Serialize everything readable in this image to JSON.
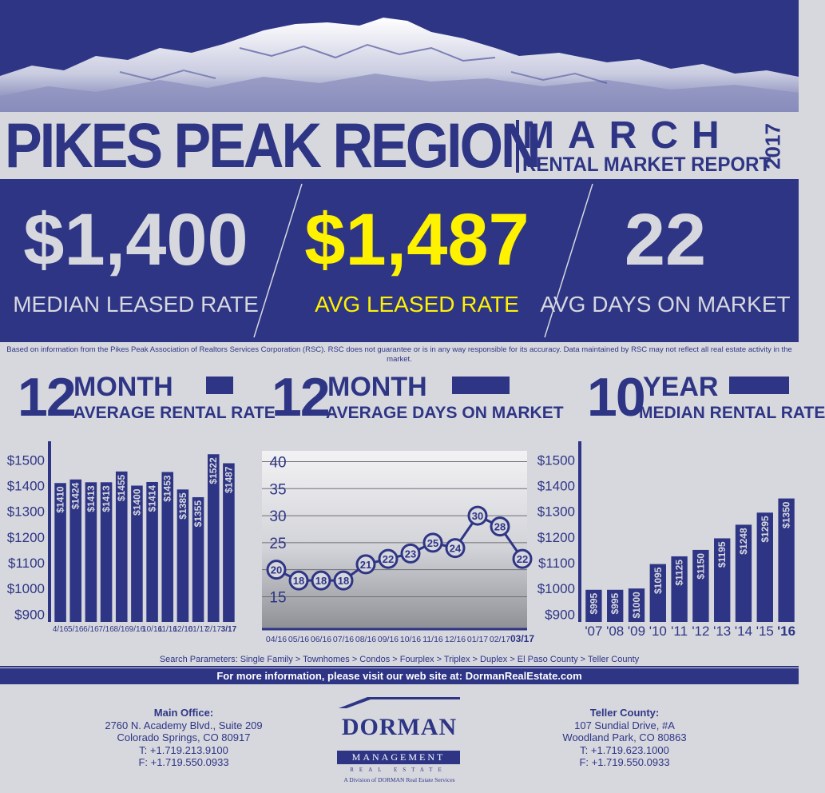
{
  "header": {
    "region_title": "PIKES PEAK REGION",
    "month": "MARCH",
    "report_subtitle": "RENTAL MARKET REPORT",
    "year": "2017"
  },
  "stats": [
    {
      "value": "$1,400",
      "label": "MEDIAN LEASED RATE",
      "highlight": false
    },
    {
      "value": "$1,487",
      "label": "AVG LEASED RATE",
      "highlight": true
    },
    {
      "value": "22",
      "label": "AVG DAYS ON MARKET",
      "highlight": false
    }
  ],
  "disclaimer": "Based on information from the Pikes Peak Association of Realtors Services Corporation (RSC). RSC does not guarantee or is in any way responsible for its accuracy. Data maintained by RSC may not reflect all real estate activity in the market.",
  "colors": {
    "navy": "#2e3585",
    "light": "#d7d8de",
    "highlight": "#fff200"
  },
  "chart_headers": [
    {
      "number": "12",
      "top": "MONTH",
      "bottom": "AVERAGE RENTAL RATE"
    },
    {
      "number": "12",
      "top": "MONTH",
      "bottom": "AVERAGE DAYS ON MARKET"
    },
    {
      "number": "10",
      "top": "YEAR",
      "bottom": "MEDIAN RENTAL RATE"
    }
  ],
  "chart_data": [
    {
      "type": "bar",
      "title": "12 MONTH AVERAGE RENTAL RATE",
      "categories": [
        "4/16",
        "5/16",
        "6/16",
        "7/16",
        "8/16",
        "9/16",
        "10/16",
        "11/16",
        "12/16",
        "01/17",
        "2/17",
        "3/17"
      ],
      "values": [
        1410,
        1424,
        1413,
        1413,
        1455,
        1400,
        1414,
        1453,
        1385,
        1355,
        1522,
        1487
      ],
      "data_labels": [
        "$1410",
        "$1424",
        "$1413",
        "$1413",
        "$1455",
        "$1400",
        "$1414",
        "$1453",
        "$1385",
        "$1355",
        "$1522",
        "$1487"
      ],
      "y_ticks": [
        900,
        1000,
        1100,
        1200,
        1300,
        1400,
        1500
      ],
      "y_tick_labels": [
        "$900",
        "$1000",
        "$1100",
        "$1200",
        "$1300",
        "$1400",
        "$1500"
      ],
      "ylim": [
        870,
        1560
      ],
      "grid": false
    },
    {
      "type": "line",
      "title": "12 MONTH AVERAGE DAYS ON MARKET",
      "categories": [
        "04/16",
        "05/16",
        "06/16",
        "07/16",
        "08/16",
        "09/16",
        "10/16",
        "11/16",
        "12/16",
        "01/17",
        "02/17",
        "03/17"
      ],
      "values": [
        20,
        18,
        18,
        18,
        21,
        22,
        23,
        25,
        24,
        30,
        28,
        22
      ],
      "y_ticks": [
        15,
        20,
        25,
        30,
        35,
        40
      ],
      "ylim": [
        9,
        42
      ],
      "grid": true
    },
    {
      "type": "bar",
      "title": "10 YEAR MEDIAN RENTAL RATE",
      "categories": [
        "'07",
        "'08",
        "'09",
        "'10",
        "'11",
        "'12",
        "'13",
        "'14",
        "'15",
        "'16"
      ],
      "values": [
        995,
        995,
        1000,
        1095,
        1125,
        1150,
        1195,
        1248,
        1295,
        1350
      ],
      "data_labels": [
        "$995",
        "$995",
        "$1000",
        "$1095",
        "$1125",
        "$1150",
        "$1195",
        "$1248",
        "$1295",
        "$1350"
      ],
      "y_ticks": [
        900,
        1000,
        1100,
        1200,
        1300,
        1400,
        1500
      ],
      "y_tick_labels": [
        "$900",
        "$1000",
        "$1100",
        "$1200",
        "$1300",
        "$1400",
        "$1500"
      ],
      "ylim": [
        870,
        1560
      ],
      "grid": false
    }
  ],
  "footer": {
    "search_params": "Search Parameters: Single Family > Townhomes > Condos > Fourplex > Triplex > Duplex > El Paso County > Teller County",
    "info": "For more information, please visit our web site at: DormanRealEstate.com",
    "main_office": {
      "heading": "Main Office:",
      "lines": [
        "2760 N. Academy Blvd.,  Suite 209",
        "Colorado Springs, CO 80917",
        "T: +1.719.213.9100",
        "F: +1.719.550.0933"
      ]
    },
    "teller_office": {
      "heading": "Teller County:",
      "lines": [
        "107 Sundial Drive, #A",
        "Woodland Park, CO 80863",
        "T: +1.719.623.1000",
        "F: +1.719.550.0933"
      ]
    },
    "logo": {
      "name": "DORMAN",
      "sub": "MANAGEMENT",
      "re": "REAL ESTATE",
      "division": "A Division of DORMAN Real Estate Services"
    }
  }
}
